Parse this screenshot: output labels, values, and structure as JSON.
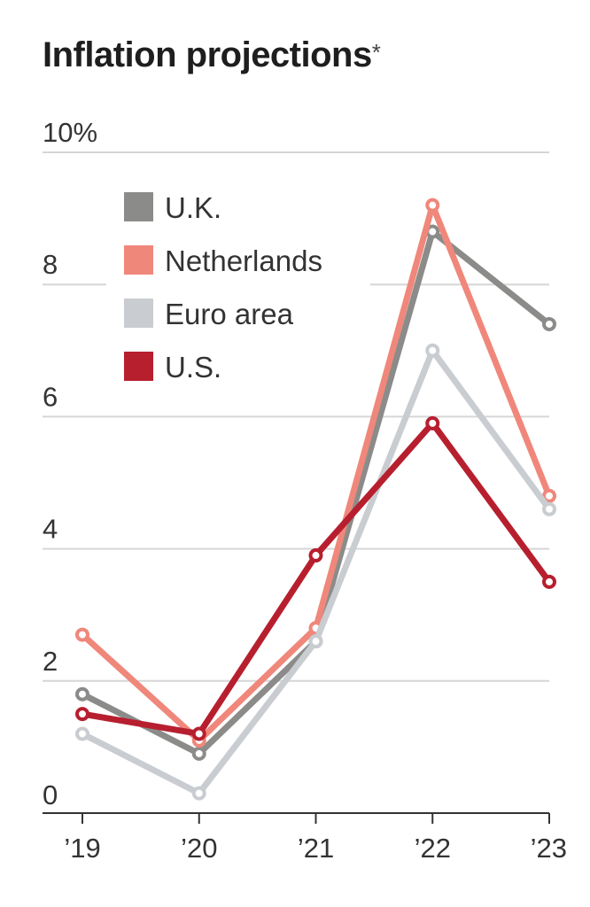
{
  "title": "Inflation projections",
  "title_mark": "*",
  "chart_data": {
    "type": "line",
    "title": "Inflation projections*",
    "categories": [
      "’19",
      "’20",
      "’21",
      "’22",
      "’23"
    ],
    "ylim": [
      0,
      10
    ],
    "yticks": [
      0,
      2,
      4,
      6,
      8,
      10
    ],
    "ytick_labels": [
      "0",
      "2",
      "4",
      "6",
      "8",
      "10%"
    ],
    "legend_position": "top-left",
    "grid": true,
    "series": [
      {
        "name": "U.K.",
        "color": "#8b8c8a",
        "values": [
          1.8,
          0.9,
          2.6,
          8.8,
          7.4
        ]
      },
      {
        "name": "Netherlands",
        "color": "#f0877b",
        "values": [
          2.7,
          1.1,
          2.8,
          9.2,
          4.8
        ]
      },
      {
        "name": "Euro area",
        "color": "#c9ccd0",
        "values": [
          1.2,
          0.3,
          2.6,
          7.0,
          4.6
        ]
      },
      {
        "name": "U.S.",
        "color": "#b71f2f",
        "values": [
          1.5,
          1.2,
          3.9,
          5.9,
          3.5
        ]
      }
    ]
  }
}
